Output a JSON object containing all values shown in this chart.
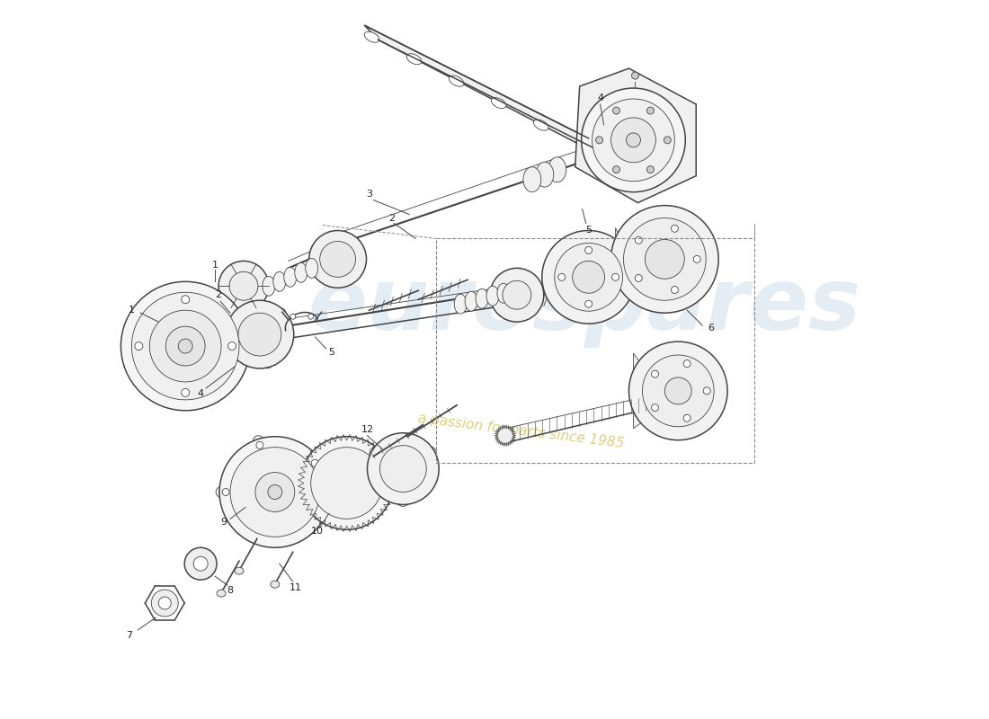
{
  "bg_color": "#ffffff",
  "line_color": "#444444",
  "fill_color": "#f8f8f8",
  "fill_mid": "#eeeeee",
  "fill_dark": "#dddddd",
  "watermark_text": "eurospares",
  "watermark_color": "#c5d8e8",
  "slogan_text": "a passion for parts since 1985",
  "slogan_color": "#d4c050",
  "figsize": [
    11.0,
    8.0
  ],
  "dpi": 100,
  "lw_main": 1.1,
  "lw_thin": 0.6,
  "lw_thick": 1.5
}
